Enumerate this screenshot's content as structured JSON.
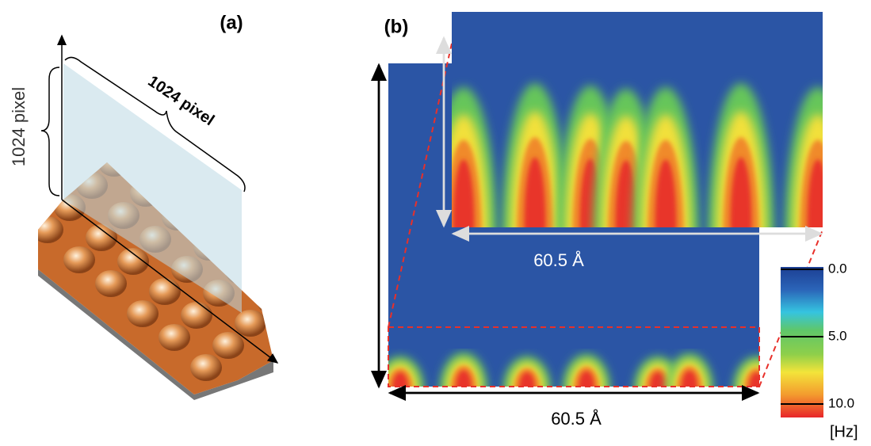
{
  "panels": [
    {
      "label": "(a)",
      "height_label": "1024 pixel",
      "width_label": "1024 pixel"
    },
    {
      "label": "(b)",
      "inset_width_label": "60.5 Å",
      "width_label": "60.5 Å",
      "colorbar": {
        "ticks": [
          {
            "value": 0,
            "label": "0.0"
          },
          {
            "value": 5,
            "label": "5.0"
          },
          {
            "value": 10,
            "label": "10.0"
          }
        ],
        "unit": "[Hz]"
      }
    }
  ]
}
